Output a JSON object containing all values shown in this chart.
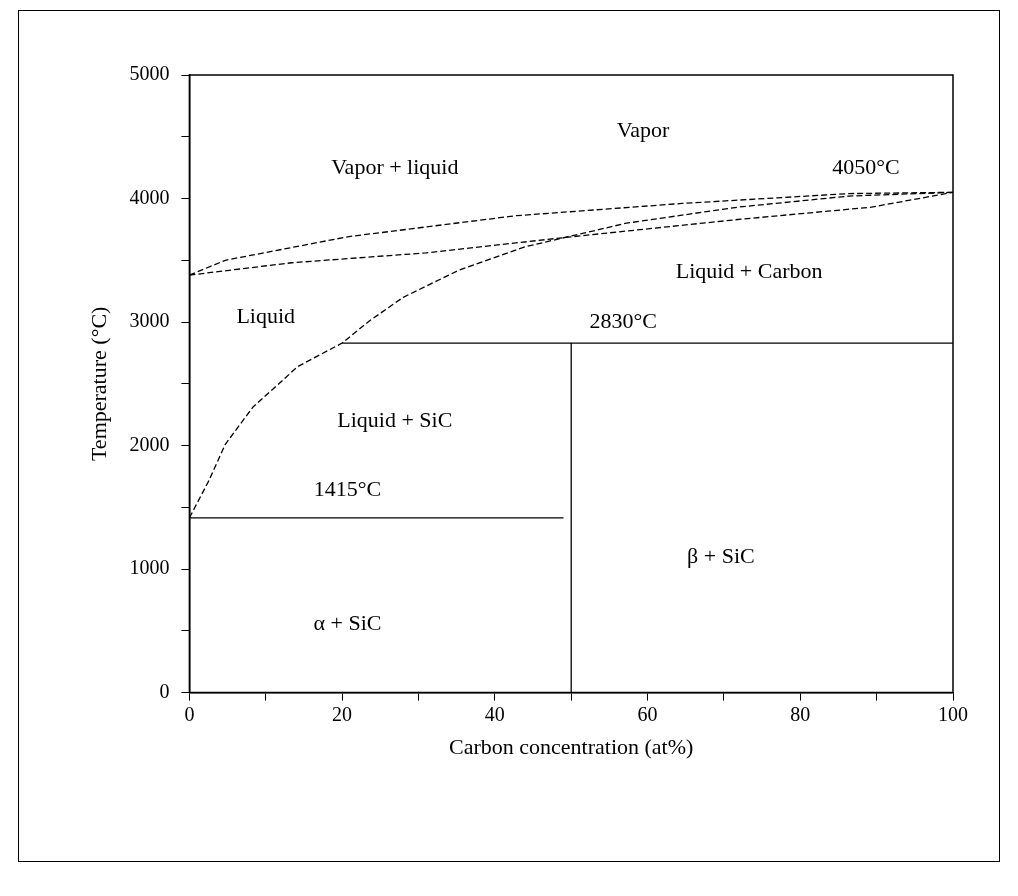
{
  "chart_data": {
    "type": "line",
    "xlabel": "Carbon concentration (at%)",
    "ylabel": "Temperature (°C)",
    "xlim": [
      0,
      100
    ],
    "ylim": [
      0,
      5000
    ],
    "xticks": [
      0,
      {
        "value": 10,
        "label": null
      },
      20,
      {
        "value": 30,
        "label": null
      },
      40,
      {
        "value": 50,
        "label": null
      },
      60,
      {
        "value": 70,
        "label": null
      },
      80,
      {
        "value": 90,
        "label": null
      },
      100
    ],
    "yticks": [
      0,
      {
        "value": 500,
        "label": null
      },
      1000,
      {
        "value": 1500,
        "label": null
      },
      2000,
      {
        "value": 2500,
        "label": null
      },
      3000,
      {
        "value": 3500,
        "label": null
      },
      4000,
      {
        "value": 4500,
        "label": null
      },
      5000
    ],
    "grid": false,
    "legend": false,
    "marker": "none",
    "line_style": "solid",
    "series": [
      {
        "color": "#000000",
        "line_style": "dashed",
        "x": [
          0,
          0.3,
          2.5,
          4.7,
          8.3,
          14.2,
          20,
          23.6,
          28,
          35.3,
          44,
          57.2,
          71.8,
          86.4,
          100
        ],
        "values": [
          1415,
          1450,
          1710,
          2010,
          2310,
          2640,
          2830,
          3010,
          3200,
          3420,
          3610,
          3800,
          3930,
          4020,
          4050
        ]
      },
      {
        "color": "#000000",
        "line_style": "dashed",
        "x": [
          0,
          4.7,
          20.7,
          42.6,
          64.5,
          86.4,
          100
        ],
        "values": [
          3380,
          3500,
          3690,
          3860,
          3960,
          4040,
          4050
        ]
      },
      {
        "color": "#000000",
        "line_style": "dashed",
        "x": [
          0,
          13.4,
          31,
          50,
          71.8,
          89.3,
          100
        ],
        "values": [
          3380,
          3480,
          3560,
          3690,
          3830,
          3930,
          4050
        ]
      },
      {
        "color": "#000000",
        "x": [
          20,
          100
        ],
        "values": [
          2830,
          2830
        ]
      },
      {
        "color": "#000000",
        "x": [
          0,
          49
        ],
        "values": [
          1415,
          1415
        ]
      },
      {
        "color": "#000000",
        "x": [
          50,
          50
        ],
        "values": [
          0,
          2830
        ]
      }
    ],
    "annotations": [
      "Vapor",
      "Vapor + liquid",
      "4050°C",
      "Liquid + Carbon",
      "Liquid",
      "2830°C",
      "Liquid + SiC",
      "1415°C",
      "β + SiC",
      "α + SiC"
    ]
  }
}
